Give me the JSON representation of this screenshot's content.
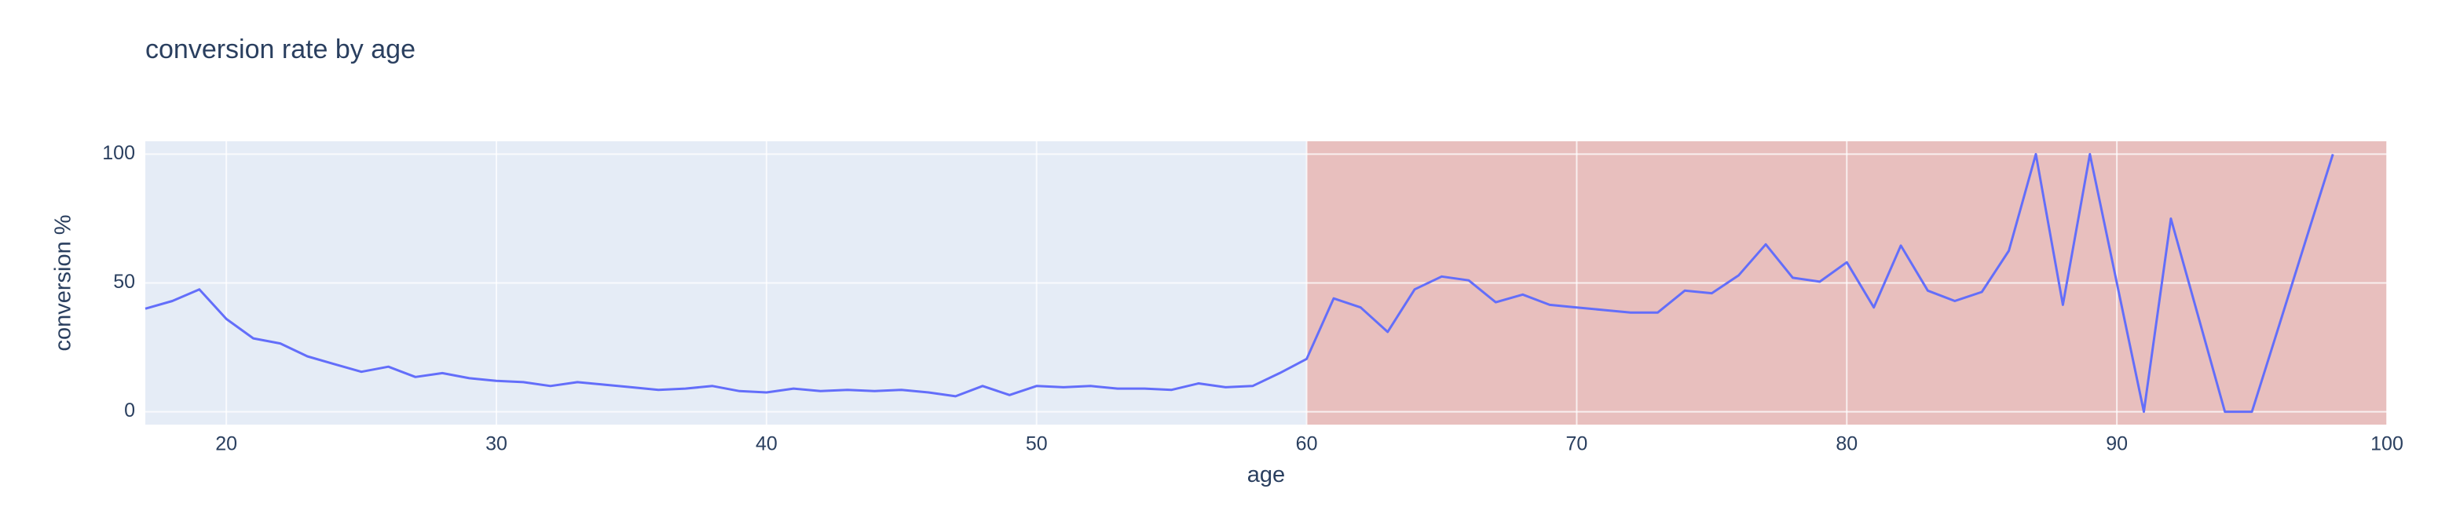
{
  "chart_data": {
    "type": "line",
    "title": "conversion rate by age",
    "xlabel": "age",
    "ylabel": "conversion %",
    "xlim": [
      17,
      100
    ],
    "ylim": [
      -5,
      105
    ],
    "x_ticks": [
      20,
      30,
      40,
      50,
      60,
      70,
      80,
      90,
      100
    ],
    "y_ticks": [
      0,
      50,
      100
    ],
    "grid": true,
    "plot_background": "#e5ecf6",
    "line_color": "#636efa",
    "highlight_region": {
      "x_start": 60,
      "x_end": 100,
      "color": "#ef553b",
      "opacity": 0.3
    },
    "series": [
      {
        "x": [
          17,
          18,
          19,
          20,
          21,
          22,
          23,
          24,
          25,
          26,
          27,
          28,
          29,
          30,
          31,
          32,
          33,
          34,
          35,
          36,
          37,
          38,
          39,
          40,
          41,
          42,
          43,
          44,
          45,
          46,
          47,
          48,
          49,
          50,
          51,
          52,
          53,
          54,
          55,
          56,
          57,
          58,
          59,
          60,
          61,
          62,
          63,
          64,
          65,
          66,
          67,
          68,
          69,
          70,
          71,
          72,
          73,
          74,
          75,
          76,
          77,
          78,
          79,
          80,
          81,
          82,
          83,
          84,
          85,
          86,
          87,
          88,
          89,
          90,
          91,
          92,
          93,
          94,
          95,
          96,
          97,
          98
        ],
        "y": [
          40,
          43,
          47.5,
          36,
          28.5,
          26.5,
          21.5,
          18.5,
          15.5,
          17.5,
          13.5,
          15,
          13,
          12,
          11.5,
          10,
          11.5,
          10.5,
          9.5,
          8.5,
          9,
          10,
          8,
          7.5,
          9,
          8,
          8.5,
          8,
          8.5,
          7.5,
          6,
          10,
          6.5,
          10,
          9.5,
          10,
          9,
          9,
          8.5,
          11,
          9.5,
          10,
          15,
          20.5,
          44,
          40.5,
          31,
          47.5,
          52.5,
          51,
          42.5,
          45.5,
          41.5,
          40.5,
          39.5,
          38.5,
          38.5,
          47,
          46,
          53,
          65,
          52,
          50.5,
          58,
          40.5,
          64.5,
          47,
          43,
          46.5,
          62.5,
          100,
          41.5,
          100,
          50,
          0,
          75,
          37.5,
          0,
          0,
          33.3,
          66.7,
          100
        ]
      }
    ]
  }
}
